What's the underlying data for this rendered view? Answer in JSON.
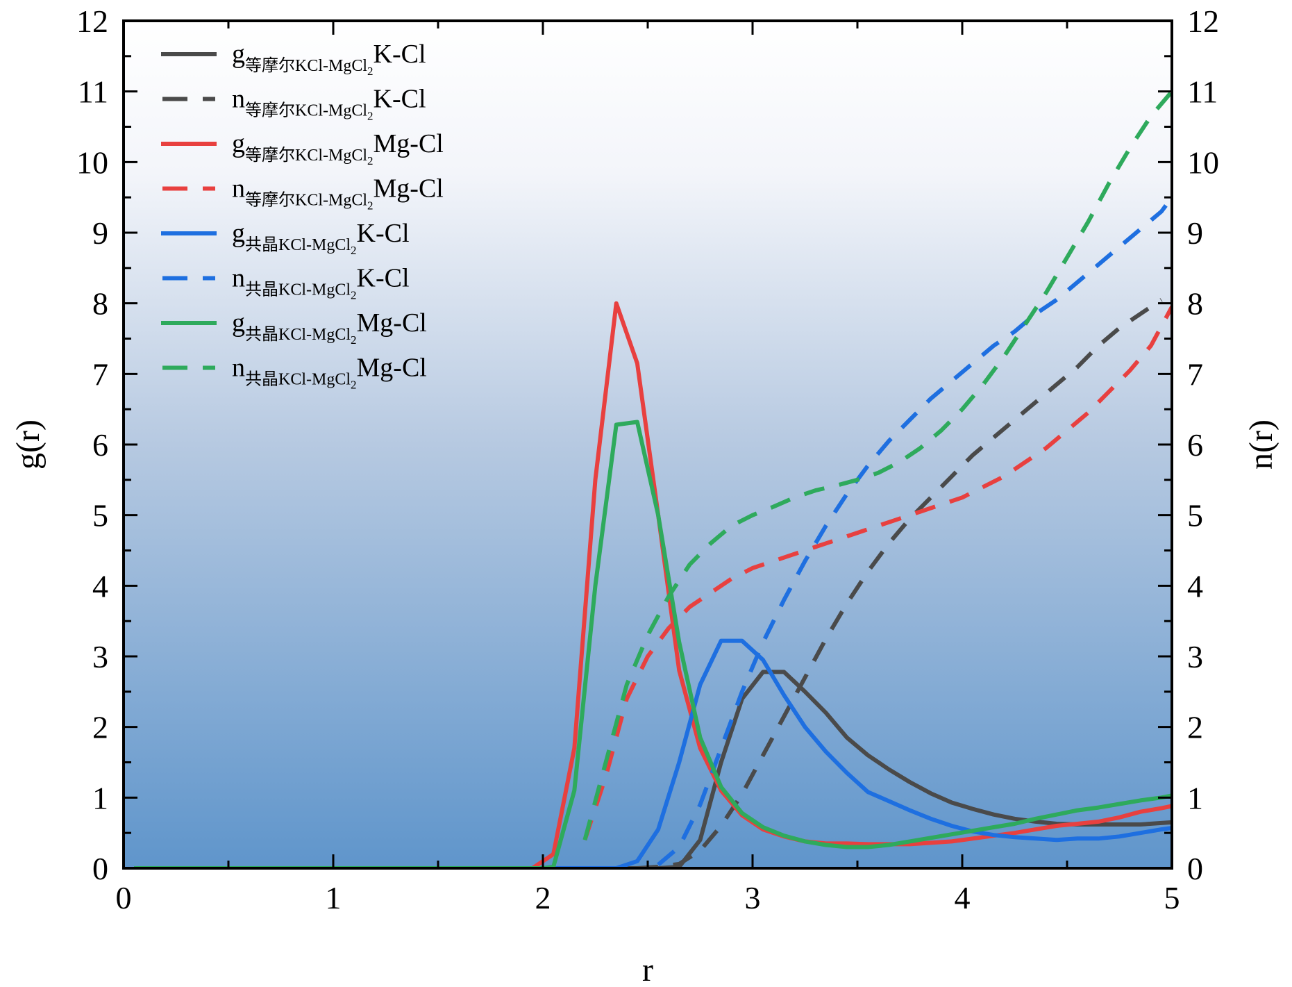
{
  "chart_data": {
    "type": "line",
    "title": "",
    "xlabel": "r",
    "ylabel": "g(r)",
    "y2label": "n(r)",
    "xlim": [
      0,
      5
    ],
    "ylim": [
      0,
      12
    ],
    "y2lim": [
      0,
      12
    ],
    "xticks": [
      "0",
      "1",
      "2",
      "3",
      "4",
      "5"
    ],
    "yticks": [
      "0",
      "1",
      "2",
      "3",
      "4",
      "5",
      "6",
      "7",
      "8",
      "9",
      "10",
      "11",
      "12"
    ],
    "y2ticks": [
      "0",
      "1",
      "2",
      "3",
      "4",
      "5",
      "6",
      "7",
      "8",
      "9",
      "10",
      "11",
      "12"
    ],
    "legend_position": "top-left",
    "series": [
      {
        "id": "g-eq-kcl",
        "name": "g等摩尔KCl-MgCl2K-Cl",
        "legend": {
          "prefix": "g",
          "sub_a": "等摩尔KCl-MgCl",
          "sub_b": "2",
          "suffix": "K-Cl"
        },
        "color": "#4a4a4a",
        "style": "solid",
        "axis": "left",
        "x": [
          0.05,
          0.3,
          0.8,
          1.3,
          1.8,
          2.3,
          2.45,
          2.55,
          2.65,
          2.75,
          2.85,
          2.95,
          3.05,
          3.15,
          3.25,
          3.35,
          3.45,
          3.55,
          3.65,
          3.75,
          3.85,
          3.95,
          4.05,
          4.15,
          4.25,
          4.35,
          4.45,
          4.55,
          4.65,
          4.75,
          4.85,
          4.95,
          5.0
        ],
        "values": [
          0,
          0,
          0,
          0,
          0,
          0,
          0,
          0,
          0.02,
          0.4,
          1.5,
          2.4,
          2.78,
          2.78,
          2.5,
          2.2,
          1.85,
          1.6,
          1.4,
          1.22,
          1.06,
          0.93,
          0.84,
          0.76,
          0.7,
          0.66,
          0.63,
          0.62,
          0.62,
          0.62,
          0.62,
          0.64,
          0.65
        ]
      },
      {
        "id": "n-eq-kcl",
        "name": "n等摩尔KCl-MgCl2K-Cl",
        "legend": {
          "prefix": "n",
          "sub_a": "等摩尔KCl-MgCl",
          "sub_b": "2",
          "suffix": "K-Cl"
        },
        "color": "#4a4a4a",
        "style": "dashed",
        "axis": "right",
        "x": [
          2.45,
          2.55,
          2.65,
          2.75,
          2.85,
          2.95,
          3.05,
          3.15,
          3.25,
          3.35,
          3.45,
          3.55,
          3.65,
          3.75,
          3.85,
          3.95,
          4.05,
          4.15,
          4.25,
          4.35,
          4.45,
          4.55,
          4.65,
          4.75,
          4.85,
          4.95
        ],
        "values": [
          0,
          0.02,
          0.06,
          0.25,
          0.6,
          1.05,
          1.6,
          2.15,
          2.7,
          3.25,
          3.75,
          4.2,
          4.6,
          4.95,
          5.25,
          5.55,
          5.85,
          6.1,
          6.35,
          6.6,
          6.85,
          7.1,
          7.4,
          7.65,
          7.85,
          8.05
        ]
      },
      {
        "id": "g-eq-mgcl",
        "name": "g等摩尔KCl-MgCl2Mg-Cl",
        "legend": {
          "prefix": "g",
          "sub_a": "等摩尔KCl-MgCl",
          "sub_b": "2",
          "suffix": "Mg-Cl"
        },
        "color": "#e8403f",
        "style": "solid",
        "axis": "left",
        "x": [
          0.05,
          0.5,
          1.0,
          1.5,
          1.95,
          2.05,
          2.15,
          2.25,
          2.35,
          2.45,
          2.55,
          2.65,
          2.75,
          2.85,
          2.95,
          3.05,
          3.15,
          3.25,
          3.35,
          3.45,
          3.55,
          3.65,
          3.75,
          3.85,
          3.95,
          4.05,
          4.15,
          4.25,
          4.35,
          4.45,
          4.55,
          4.65,
          4.75,
          4.85,
          4.95,
          5.0
        ],
        "values": [
          0,
          0,
          0,
          0,
          0,
          0.2,
          1.7,
          5.5,
          8.0,
          7.15,
          5.0,
          2.8,
          1.7,
          1.1,
          0.75,
          0.55,
          0.45,
          0.38,
          0.35,
          0.35,
          0.34,
          0.34,
          0.34,
          0.36,
          0.38,
          0.42,
          0.46,
          0.5,
          0.55,
          0.6,
          0.63,
          0.66,
          0.72,
          0.8,
          0.85,
          0.88
        ]
      },
      {
        "id": "n-eq-mgcl",
        "name": "n等摩尔KCl-MgCl2Mg-Cl",
        "legend": {
          "prefix": "n",
          "sub_a": "等摩尔KCl-MgCl",
          "sub_b": "2",
          "suffix": "Mg-Cl"
        },
        "color": "#e8403f",
        "style": "dashed",
        "axis": "right",
        "x": [
          2.2,
          2.3,
          2.4,
          2.5,
          2.6,
          2.7,
          2.8,
          2.9,
          3.0,
          3.1,
          3.2,
          3.3,
          3.4,
          3.5,
          3.6,
          3.7,
          3.8,
          3.9,
          4.0,
          4.1,
          4.2,
          4.3,
          4.4,
          4.5,
          4.6,
          4.7,
          4.8,
          4.9,
          5.0
        ],
        "values": [
          0.4,
          1.3,
          2.4,
          3.0,
          3.4,
          3.7,
          3.9,
          4.1,
          4.25,
          4.35,
          4.45,
          4.55,
          4.65,
          4.75,
          4.85,
          4.95,
          5.05,
          5.15,
          5.25,
          5.4,
          5.55,
          5.75,
          5.95,
          6.2,
          6.45,
          6.75,
          7.05,
          7.4,
          7.95
        ]
      },
      {
        "id": "g-co-kcl",
        "name": "g共晶KCl-MgCl2K-Cl",
        "legend": {
          "prefix": "g",
          "sub_a": "共晶KCl-MgCl",
          "sub_b": "2",
          "suffix": "K-Cl"
        },
        "color": "#1e6fe0",
        "style": "solid",
        "axis": "left",
        "x": [
          0.05,
          0.5,
          1.0,
          1.5,
          2.0,
          2.35,
          2.45,
          2.55,
          2.65,
          2.75,
          2.85,
          2.95,
          3.05,
          3.15,
          3.25,
          3.35,
          3.45,
          3.55,
          3.65,
          3.75,
          3.85,
          3.95,
          4.05,
          4.15,
          4.25,
          4.35,
          4.45,
          4.55,
          4.65,
          4.75,
          4.85,
          4.95,
          5.0
        ],
        "values": [
          0,
          0,
          0,
          0,
          0,
          0,
          0.1,
          0.55,
          1.5,
          2.6,
          3.22,
          3.22,
          2.95,
          2.45,
          2.0,
          1.65,
          1.35,
          1.08,
          0.95,
          0.82,
          0.7,
          0.6,
          0.52,
          0.47,
          0.44,
          0.42,
          0.4,
          0.42,
          0.42,
          0.45,
          0.5,
          0.55,
          0.57
        ]
      },
      {
        "id": "n-co-kcl",
        "name": "n共晶KCl-MgCl2K-Cl",
        "legend": {
          "prefix": "n",
          "sub_a": "共晶KCl-MgCl",
          "sub_b": "2",
          "suffix": "K-Cl"
        },
        "color": "#1e6fe0",
        "style": "dashed",
        "axis": "right",
        "x": [
          2.55,
          2.65,
          2.75,
          2.85,
          2.95,
          3.05,
          3.15,
          3.25,
          3.35,
          3.45,
          3.55,
          3.65,
          3.75,
          3.85,
          3.95,
          4.05,
          4.15,
          4.25,
          4.35,
          4.45,
          4.55,
          4.65,
          4.75,
          4.85,
          4.95,
          5.0
        ],
        "values": [
          0.05,
          0.3,
          0.9,
          1.7,
          2.5,
          3.2,
          3.8,
          4.35,
          4.85,
          5.3,
          5.7,
          6.05,
          6.35,
          6.65,
          6.9,
          7.15,
          7.4,
          7.6,
          7.85,
          8.05,
          8.3,
          8.55,
          8.8,
          9.05,
          9.3,
          9.5
        ]
      },
      {
        "id": "g-co-mgcl",
        "name": "g共晶KCl-MgCl2Mg-Cl",
        "legend": {
          "prefix": "g",
          "sub_a": "共晶KCl-MgCl",
          "sub_b": "2",
          "suffix": "Mg-Cl"
        },
        "color": "#2eaa5c",
        "style": "solid",
        "axis": "left",
        "x": [
          0.05,
          0.5,
          1.0,
          1.5,
          2.0,
          2.05,
          2.15,
          2.25,
          2.35,
          2.45,
          2.55,
          2.65,
          2.75,
          2.85,
          2.95,
          3.05,
          3.15,
          3.25,
          3.35,
          3.45,
          3.55,
          3.65,
          3.75,
          3.85,
          3.95,
          4.05,
          4.15,
          4.25,
          4.35,
          4.45,
          4.55,
          4.65,
          4.75,
          4.85,
          4.95,
          5.0
        ],
        "values": [
          0,
          0,
          0,
          0,
          0,
          0.02,
          1.1,
          4.0,
          6.28,
          6.32,
          5.0,
          3.2,
          1.85,
          1.15,
          0.78,
          0.58,
          0.46,
          0.38,
          0.33,
          0.3,
          0.3,
          0.33,
          0.38,
          0.43,
          0.48,
          0.53,
          0.58,
          0.63,
          0.7,
          0.76,
          0.82,
          0.86,
          0.91,
          0.96,
          1.0,
          1.03
        ]
      },
      {
        "id": "n-co-mgcl",
        "name": "n共晶KCl-MgCl2Mg-Cl",
        "legend": {
          "prefix": "n",
          "sub_a": "共晶KCl-MgCl",
          "sub_b": "2",
          "suffix": "Mg-Cl"
        },
        "color": "#2eaa5c",
        "style": "dashed",
        "axis": "right",
        "x": [
          2.2,
          2.3,
          2.4,
          2.5,
          2.6,
          2.7,
          2.8,
          2.9,
          3.0,
          3.1,
          3.2,
          3.3,
          3.4,
          3.5,
          3.6,
          3.7,
          3.8,
          3.9,
          4.0,
          4.1,
          4.2,
          4.3,
          4.4,
          4.5,
          4.6,
          4.7,
          4.8,
          4.9,
          5.0
        ],
        "values": [
          0.4,
          1.5,
          2.6,
          3.3,
          3.85,
          4.3,
          4.6,
          4.85,
          5.0,
          5.12,
          5.25,
          5.35,
          5.42,
          5.5,
          5.6,
          5.75,
          5.95,
          6.2,
          6.5,
          6.85,
          7.25,
          7.7,
          8.15,
          8.65,
          9.15,
          9.7,
          10.2,
          10.65,
          11.0
        ]
      }
    ]
  }
}
